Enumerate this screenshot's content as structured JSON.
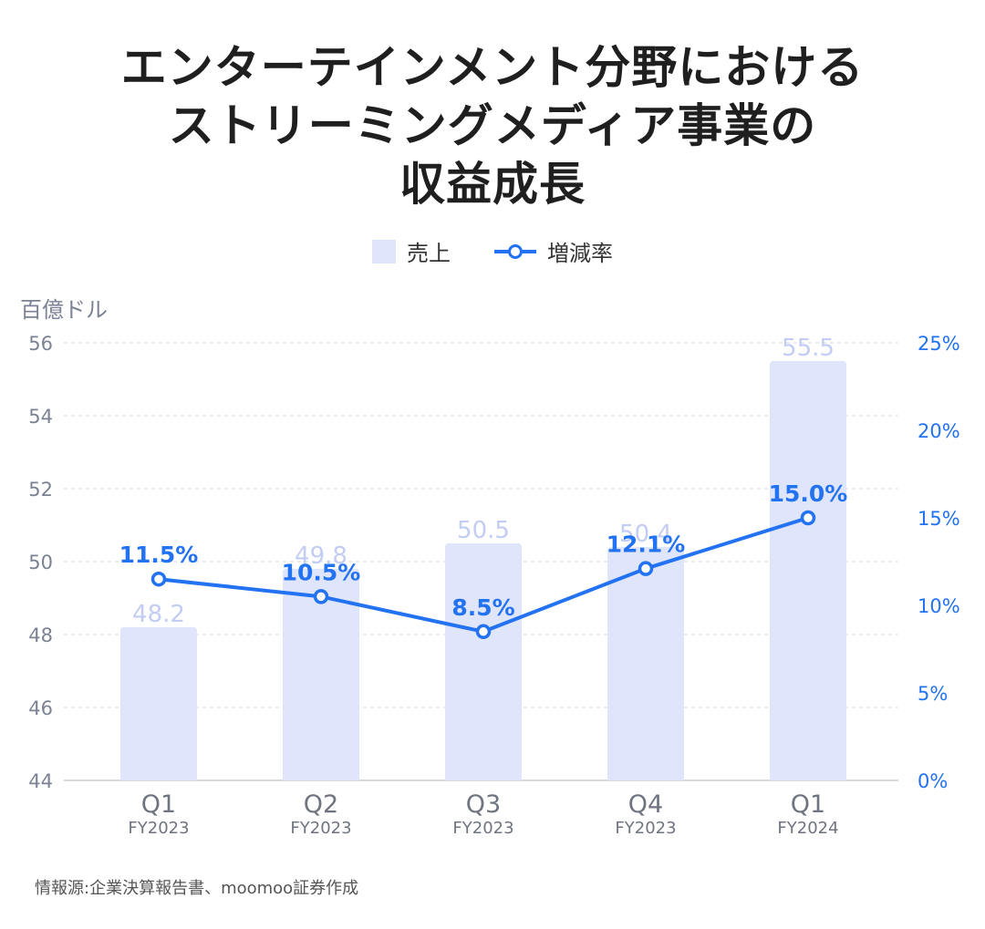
{
  "title": {
    "line1": "エンターテインメント分野における",
    "line2": "ストリーミングメディア事業の",
    "line3": "収益成長"
  },
  "legend": {
    "bar": "売上",
    "line": "増減率"
  },
  "unit_label": "百億ドル",
  "source": "情報源:企業決算報告書、moomoo証券作成",
  "colors": {
    "bar": "#dfe5fb",
    "bar_label": "#c3cdf3",
    "line": "#2272f2",
    "axis_text": "#7a8294"
  },
  "chart_data": {
    "type": "bar",
    "categories": [
      "Q1",
      "Q2",
      "Q3",
      "Q4",
      "Q1"
    ],
    "category_sublabels": [
      "FY2023",
      "FY2023",
      "FY2023",
      "FY2023",
      "FY2024"
    ],
    "series": [
      {
        "name": "売上",
        "type": "bar",
        "axis": "left",
        "values": [
          48.2,
          49.8,
          50.5,
          50.4,
          55.5
        ]
      },
      {
        "name": "増減率",
        "type": "line",
        "axis": "right",
        "values": [
          11.5,
          10.5,
          8.5,
          12.1,
          15.0
        ],
        "labels": [
          "11.5%",
          "10.5%",
          "8.5%",
          "12.1%",
          "15.0%"
        ]
      }
    ],
    "y_left": {
      "ylim": [
        44,
        56
      ],
      "ticks": [
        "44",
        "46",
        "48",
        "50",
        "52",
        "54",
        "56"
      ]
    },
    "y_right": {
      "ylim": [
        0,
        25
      ],
      "ticks": [
        "0%",
        "5%",
        "10%",
        "15%",
        "20%",
        "25%"
      ]
    },
    "grid": true,
    "legend": "top-center"
  }
}
